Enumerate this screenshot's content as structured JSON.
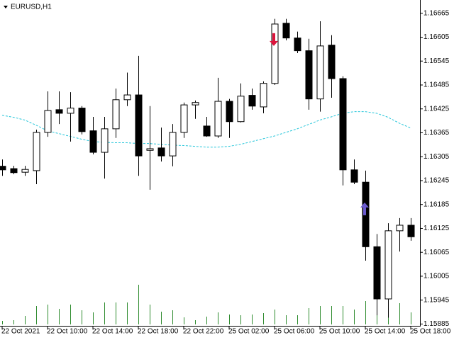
{
  "chart_data": {
    "type": "candlestick",
    "title": "EURUSD,H1",
    "categories": [
      "22 Oct 2021",
      null,
      null,
      null,
      "22 Oct 10:00",
      null,
      null,
      null,
      "22 Oct 14:00",
      null,
      null,
      null,
      "22 Oct 18:00",
      null,
      null,
      null,
      "22 Oct 22:00",
      null,
      null,
      null,
      "25 Oct 02:00",
      null,
      null,
      null,
      "25 Oct 06:00",
      null,
      null,
      null,
      "25 Oct 10:00",
      null,
      null,
      null,
      "25 Oct 14:00",
      null,
      null,
      null,
      "25 Oct 18:00"
    ],
    "open": [
      1.16281,
      1.16275,
      1.16266,
      1.1627,
      1.16366,
      1.16423,
      1.16414,
      1.16427,
      1.1637,
      1.16316,
      1.16375,
      1.16448,
      1.1646,
      1.16321,
      1.16327,
      1.16307,
      1.16366,
      1.16435,
      1.16382,
      1.16357,
      1.16444,
      1.16393,
      1.16459,
      1.1643,
      1.16489,
      1.1664,
      1.16603,
      1.16571,
      1.1645,
      1.16585,
      1.16501,
      1.16272,
      1.16241,
      1.16079,
      1.15948,
      1.16119,
      1.16133
    ],
    "high": [
      1.16298,
      1.16282,
      1.16282,
      1.16373,
      1.16469,
      1.16469,
      1.16467,
      1.16432,
      1.16405,
      1.16405,
      1.16476,
      1.16516,
      1.16558,
      1.16432,
      1.16378,
      1.16387,
      1.16441,
      1.16446,
      1.16405,
      1.16503,
      1.1645,
      1.16489,
      1.16476,
      1.16494,
      1.16651,
      1.16651,
      1.16619,
      1.16601,
      1.16645,
      1.1661,
      1.16507,
      1.16298,
      1.1627,
      1.16111,
      1.16138,
      1.16151,
      1.16151
    ],
    "low": [
      1.16257,
      1.16261,
      1.16257,
      1.16236,
      1.16355,
      1.16387,
      1.16343,
      1.16361,
      1.16311,
      1.1625,
      1.16352,
      1.16432,
      1.16257,
      1.16222,
      1.16293,
      1.16281,
      1.16352,
      1.164,
      1.16355,
      1.16352,
      1.16352,
      1.16391,
      1.16423,
      1.16414,
      1.16485,
      1.16597,
      1.16565,
      1.16423,
      1.16418,
      1.16453,
      1.16233,
      1.16236,
      1.16044,
      1.15907,
      1.15901,
      1.16067,
      1.16094
    ],
    "close": [
      1.16272,
      1.16265,
      1.16273,
      1.16366,
      1.16421,
      1.16414,
      1.16427,
      1.16368,
      1.16316,
      1.16375,
      1.16448,
      1.1646,
      1.16307,
      1.16325,
      1.16307,
      1.16366,
      1.16435,
      1.16441,
      1.16357,
      1.16444,
      1.16393,
      1.16457,
      1.16432,
      1.16489,
      1.16638,
      1.16603,
      1.16571,
      1.1645,
      1.16583,
      1.16501,
      1.16272,
      1.16241,
      1.16079,
      1.15948,
      1.16119,
      1.16133,
      1.16104
    ],
    "moving_average": {
      "color": "#26c6da",
      "values": [
        1.16409,
        1.16404,
        1.16397,
        1.16384,
        1.1637,
        1.16363,
        1.16356,
        1.16349,
        1.16343,
        1.16341,
        1.1634,
        1.1634,
        1.16338,
        1.16338,
        1.16336,
        1.16334,
        1.16333,
        1.16331,
        1.16329,
        1.16329,
        1.16331,
        1.16336,
        1.16343,
        1.1635,
        1.16357,
        1.16366,
        1.16375,
        1.16386,
        1.16397,
        1.16405,
        1.16414,
        1.16418,
        1.16418,
        1.16414,
        1.16404,
        1.16389,
        1.16377
      ]
    },
    "volume": {
      "color": "#2e8b2e",
      "values": [
        250,
        300,
        600,
        1300,
        1400,
        1100,
        1400,
        1000,
        850,
        1550,
        1550,
        1550,
        2800,
        1400,
        900,
        1000,
        500,
        300,
        550,
        850,
        700,
        650,
        700,
        800,
        1050,
        650,
        650,
        1150,
        1300,
        1300,
        1300,
        1050,
        1650,
        1850,
        2000,
        1500,
        850
      ]
    },
    "signals": [
      {
        "index": 24,
        "direction": "down",
        "price": 1.16599,
        "color": "#dc143c"
      },
      {
        "index": 32,
        "direction": "up",
        "price": 1.16174,
        "color": "#6a5acd"
      }
    ],
    "bull_color": "#ffffff",
    "bear_color": "#000000",
    "ylim": [
      1.15884,
      1.16693
    ],
    "yticks": [
      1.16665,
      1.16605,
      1.16545,
      1.16485,
      1.16425,
      1.16365,
      1.16305,
      1.16245,
      1.16185,
      1.16125,
      1.16065,
      1.16005,
      1.15945,
      1.15885
    ]
  }
}
